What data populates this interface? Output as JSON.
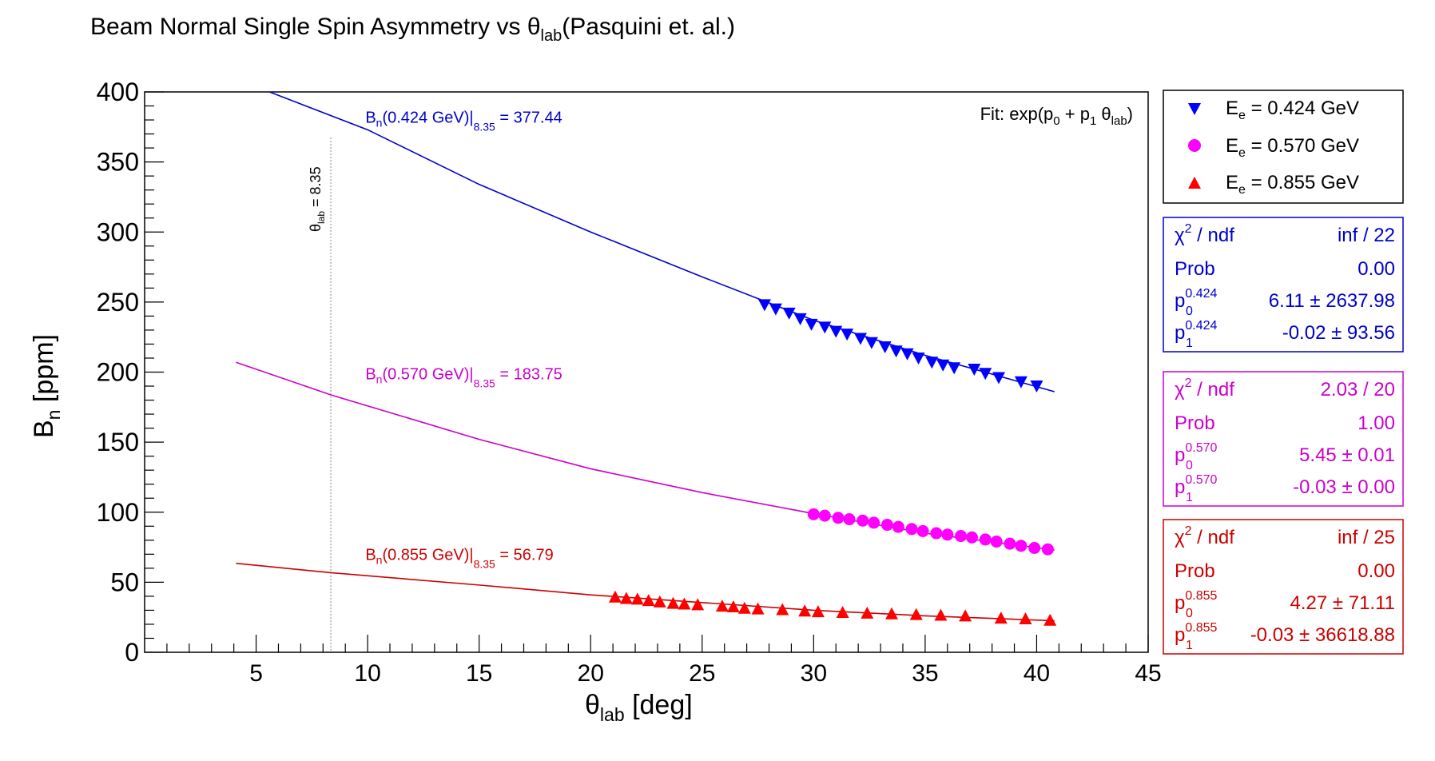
{
  "title": {
    "main": "Beam Normal Single Spin Asymmetry vs θ",
    "sub": "lab",
    "tail": "(Pasquini et. al.)"
  },
  "axes": {
    "xlabel_main": "θ",
    "xlabel_sub": "lab",
    "xlabel_tail": " [deg]",
    "ylabel_main": "B",
    "ylabel_sub": "n",
    "ylabel_tail": " [ppm]"
  },
  "fit_note": {
    "prefix": "Fit: exp(p",
    "sub0": "0",
    "mid": " + p",
    "sub1": "1",
    "theta": " θ",
    "sublab": "lab",
    "suffix": ")"
  },
  "vline_label": {
    "main": "θ",
    "sub": "lab",
    "tail": " = 8.35"
  },
  "legend": [
    {
      "prefix": "E",
      "sub": "e",
      "text": " = 0.424 GeV"
    },
    {
      "prefix": "E",
      "sub": "e",
      "text": " = 0.570 GeV"
    },
    {
      "prefix": "E",
      "sub": "e",
      "text": " = 0.855 GeV"
    }
  ],
  "stats": [
    {
      "chi_label": "χ",
      "chi_sup": "2",
      "ndf": " / ndf",
      "chi_value": "inf / 22",
      "prob_label": "Prob",
      "prob_value": "0.00",
      "p_label": "p",
      "p0_sub": "0",
      "p1_sub": "1",
      "p_sup": "0.424",
      "p0_value": "6.11 ± 2637.98",
      "p1_value": "-0.02 ± 93.56"
    },
    {
      "chi_label": "χ",
      "chi_sup": "2",
      "ndf": " / ndf",
      "chi_value": "2.03 / 20",
      "prob_label": "Prob",
      "prob_value": "1.00",
      "p_label": "p",
      "p0_sub": "0",
      "p1_sub": "1",
      "p_sup": "0.570",
      "p0_value": "5.45 ± 0.01",
      "p1_value": "-0.03 ± 0.00"
    },
    {
      "chi_label": "χ",
      "chi_sup": "2",
      "ndf": " / ndf",
      "chi_value": "inf / 25",
      "prob_label": "Prob",
      "prob_value": "0.00",
      "p_label": "p",
      "p0_sub": "0",
      "p1_sub": "1",
      "p_sup": "0.855",
      "p0_value": "4.27 ± 71.11",
      "p1_value": "-0.03 ± 36618.88"
    }
  ],
  "chart_data": {
    "type": "scatter",
    "xlim": [
      0,
      45
    ],
    "ylim": [
      0,
      400
    ],
    "x_ticks": [
      5,
      10,
      15,
      20,
      25,
      30,
      35,
      40,
      45
    ],
    "y_ticks": [
      0,
      50,
      100,
      150,
      200,
      250,
      300,
      350,
      400
    ],
    "vline_x": 8.35,
    "series": [
      {
        "name": "E_e = 0.424 GeV",
        "color": "#0000ff",
        "line_color": "#0000cc",
        "marker": "triangle-down",
        "fit": {
          "x": [
            5.6,
            10,
            15,
            20,
            25,
            30,
            35,
            40.8
          ],
          "y": [
            400,
            373,
            334,
            300,
            268,
            237,
            212,
            186
          ]
        },
        "annotation": {
          "prefix": "B",
          "sub": "n",
          "mid": "(0.424 GeV)|",
          "sub2": "8.35",
          "tail": " = 377.44",
          "x": 9.9,
          "y": 378
        },
        "x": [
          27.8,
          28.3,
          28.9,
          29.4,
          29.9,
          30.5,
          31.0,
          31.5,
          32.1,
          32.6,
          33.2,
          33.7,
          34.2,
          34.7,
          35.3,
          35.8,
          36.3,
          37.2,
          37.7,
          38.3,
          39.3,
          40.0
        ],
        "y": [
          248,
          245,
          242,
          238,
          234,
          232,
          229,
          227,
          224,
          221,
          218,
          215,
          213,
          210,
          207,
          205,
          203,
          202,
          199,
          196,
          193,
          190
        ]
      },
      {
        "name": "E_e = 0.570 GeV",
        "color": "#ff00ff",
        "line_color": "#cc00cc",
        "marker": "circle",
        "fit": {
          "x": [
            4.1,
            8.35,
            15,
            20,
            25,
            30,
            35,
            40.8
          ],
          "y": [
            207,
            183.75,
            152,
            131,
            114,
            99,
            85,
            73
          ]
        },
        "annotation": {
          "prefix": "B",
          "sub": "n",
          "mid": "(0.570 GeV)|",
          "sub2": "8.35",
          "tail": " = 183.75",
          "x": 9.9,
          "y": 195
        },
        "x": [
          30.0,
          30.5,
          31.1,
          31.6,
          32.2,
          32.7,
          33.3,
          33.8,
          34.4,
          34.9,
          35.5,
          36.0,
          36.6,
          37.1,
          37.7,
          38.2,
          38.8,
          39.3,
          39.9,
          40.5
        ],
        "y": [
          98.5,
          97.5,
          96.0,
          95.0,
          94.0,
          92.5,
          91.0,
          89.5,
          88.0,
          86.5,
          85.0,
          84.0,
          83.0,
          82.0,
          80.5,
          79.0,
          77.5,
          76.0,
          74.5,
          73.5
        ]
      },
      {
        "name": "E_e = 0.855 GeV",
        "color": "#ff0000",
        "line_color": "#cc0000",
        "marker": "triangle-up",
        "fit": {
          "x": [
            4.1,
            8.35,
            15,
            20,
            25,
            30,
            35,
            40.8
          ],
          "y": [
            63.5,
            56.79,
            48,
            41,
            35.5,
            30,
            26,
            22.5
          ]
        },
        "annotation": {
          "prefix": "B",
          "sub": "n",
          "mid": "(0.855 GeV)|",
          "sub2": "8.35",
          "tail": " = 56.79",
          "x": 9.9,
          "y": 66
        },
        "x": [
          21.1,
          21.6,
          22.1,
          22.6,
          23.1,
          23.7,
          24.2,
          24.8,
          25.9,
          26.4,
          26.9,
          27.5,
          28.6,
          29.6,
          30.2,
          31.3,
          32.4,
          33.5,
          34.6,
          35.7,
          36.8,
          38.4,
          39.5,
          40.6
        ],
        "y": [
          39.5,
          38.5,
          38.0,
          37.0,
          36.0,
          35.0,
          34.5,
          34.0,
          33.0,
          32.5,
          31.5,
          31.0,
          30.5,
          29.5,
          29.0,
          28.5,
          28.0,
          27.5,
          27.0,
          26.5,
          26.0,
          24.5,
          24.0,
          23.0
        ]
      }
    ]
  }
}
